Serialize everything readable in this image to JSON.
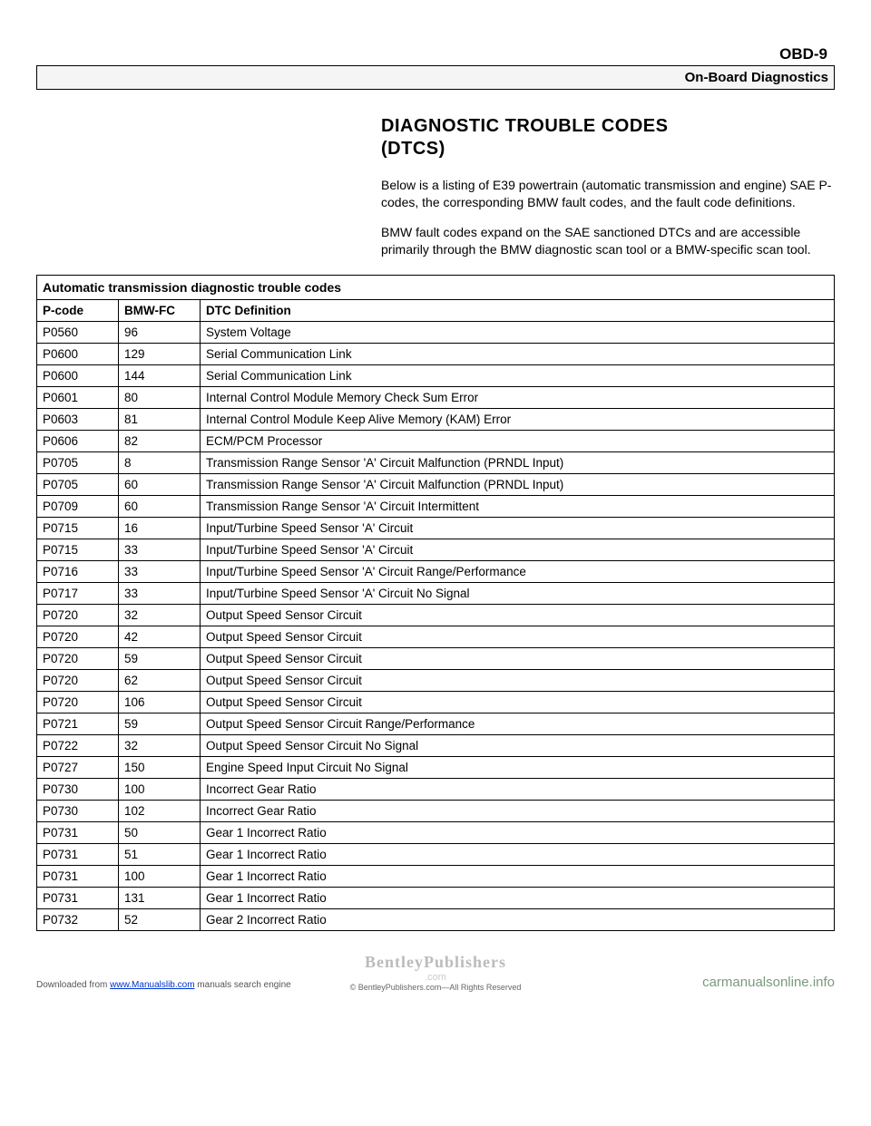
{
  "header": {
    "page_code": "OBD-9",
    "bar_title": "On-Board Diagnostics"
  },
  "section": {
    "title_line1": "DIAGNOSTIC TROUBLE CODES",
    "title_line2": "(DTCS)",
    "para1": "Below is a listing of E39 powertrain (automatic transmission and engine) SAE P-codes, the corresponding BMW fault codes, and the fault code definitions.",
    "para2": "BMW fault codes expand on the SAE sanctioned DTCs and are accessible primarily through the BMW diagnostic scan tool or a BMW-specific scan tool."
  },
  "table": {
    "caption": "Automatic transmission diagnostic trouble codes",
    "columns": [
      "P-code",
      "BMW-FC",
      "DTC Definition"
    ],
    "rows": [
      [
        "P0560",
        "96",
        "System Voltage"
      ],
      [
        "P0600",
        "129",
        "Serial Communication Link"
      ],
      [
        "P0600",
        "144",
        "Serial Communication Link"
      ],
      [
        "P0601",
        "80",
        "Internal Control Module Memory Check Sum Error"
      ],
      [
        "P0603",
        "81",
        "Internal Control Module Keep Alive Memory (KAM) Error"
      ],
      [
        "P0606",
        "82",
        "ECM/PCM Processor"
      ],
      [
        "P0705",
        "8",
        "Transmission Range Sensor 'A' Circuit Malfunction (PRNDL Input)"
      ],
      [
        "P0705",
        "60",
        "Transmission Range Sensor 'A' Circuit Malfunction (PRNDL Input)"
      ],
      [
        "P0709",
        "60",
        "Transmission Range Sensor 'A' Circuit Intermittent"
      ],
      [
        "P0715",
        "16",
        "Input/Turbine Speed Sensor 'A' Circuit"
      ],
      [
        "P0715",
        "33",
        "Input/Turbine Speed Sensor 'A' Circuit"
      ],
      [
        "P0716",
        "33",
        "Input/Turbine Speed Sensor 'A' Circuit Range/Performance"
      ],
      [
        "P0717",
        "33",
        "Input/Turbine Speed Sensor 'A' Circuit No Signal"
      ],
      [
        "P0720",
        "32",
        "Output Speed Sensor Circuit"
      ],
      [
        "P0720",
        "42",
        "Output Speed Sensor Circuit"
      ],
      [
        "P0720",
        "59",
        "Output Speed Sensor Circuit"
      ],
      [
        "P0720",
        "62",
        "Output Speed Sensor Circuit"
      ],
      [
        "P0720",
        "106",
        "Output Speed Sensor Circuit"
      ],
      [
        "P0721",
        "59",
        "Output Speed Sensor Circuit Range/Performance"
      ],
      [
        "P0722",
        "32",
        "Output Speed Sensor Circuit No Signal"
      ],
      [
        "P0727",
        "150",
        "Engine Speed Input Circuit No Signal"
      ],
      [
        "P0730",
        "100",
        "Incorrect Gear Ratio"
      ],
      [
        "P0730",
        "102",
        "Incorrect Gear Ratio"
      ],
      [
        "P0731",
        "50",
        "Gear 1 Incorrect Ratio"
      ],
      [
        "P0731",
        "51",
        "Gear 1 Incorrect Ratio"
      ],
      [
        "P0731",
        "100",
        "Gear 1 Incorrect Ratio"
      ],
      [
        "P0731",
        "131",
        "Gear 1 Incorrect Ratio"
      ],
      [
        "P0732",
        "52",
        "Gear 2 Incorrect Ratio"
      ]
    ]
  },
  "footer": {
    "watermark": "BentleyPublishers",
    "watermark_sub": ".com",
    "copyright": "© BentleyPublishers.com—All Rights Reserved",
    "download_prefix": "Downloaded from ",
    "download_link": "www.Manualslib.com",
    "download_suffix": " manuals search engine",
    "site": "carmanualsonline.info"
  }
}
